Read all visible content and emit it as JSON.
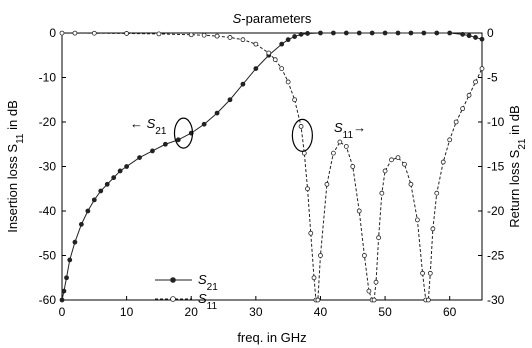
{
  "chart_data": {
    "type": "line",
    "title": "S-parameters",
    "xlabel": "freq. in GHz",
    "ylabel_left": "Insertion loss S11 in dB",
    "ylabel_right": "Return loss S21 in dB",
    "xlim": [
      0,
      65
    ],
    "ylim_left": [
      -60,
      0
    ],
    "ylim_right": [
      -30,
      0
    ],
    "x_ticks": [
      0,
      10,
      20,
      30,
      40,
      50,
      60
    ],
    "y_ticks_left": [
      0,
      -10,
      -20,
      -30,
      -40,
      -50,
      -60
    ],
    "y_ticks_right": [
      0,
      -5,
      -10,
      -15,
      -20,
      -25,
      -30
    ],
    "grid": false,
    "legend": {
      "placement": "bottom-left",
      "entries": [
        "S21",
        "S11"
      ]
    },
    "annotations": [
      {
        "text": "← S21",
        "target_series": "S21"
      },
      {
        "text": "S11→",
        "target_series": "S11"
      }
    ],
    "series": [
      {
        "name": "S21",
        "marker": "filled-circle",
        "line": "solid",
        "axis": "left",
        "x": [
          0,
          0.3,
          0.7,
          1.2,
          2,
          3,
          4,
          5,
          6,
          7,
          8,
          9,
          10,
          12,
          14,
          16,
          18,
          20,
          22,
          24,
          26,
          28,
          30,
          32,
          34,
          35,
          36,
          37,
          38,
          40,
          42,
          44,
          46,
          48,
          50,
          52,
          54,
          56,
          58,
          60,
          62,
          63,
          64,
          65
        ],
        "y": [
          -60,
          -58,
          -55,
          -51,
          -47,
          -43,
          -40,
          -37.5,
          -35.5,
          -34,
          -32.5,
          -31,
          -30,
          -28,
          -26.5,
          -25,
          -24,
          -22.5,
          -20.5,
          -18,
          -15,
          -11.5,
          -8,
          -5,
          -2.5,
          -1.5,
          -0.8,
          -0.3,
          -0.1,
          0,
          0,
          0,
          0,
          0,
          0,
          0,
          0,
          0,
          0,
          0,
          -0.3,
          -0.6,
          -1.0,
          -1.4
        ]
      },
      {
        "name": "S11",
        "marker": "open-circle",
        "line": "dashed",
        "axis": "left",
        "x": [
          0,
          2,
          5,
          10,
          15,
          20,
          22,
          24,
          26,
          28,
          30,
          32,
          33,
          34,
          35,
          36,
          37,
          37.5,
          38,
          38.5,
          39,
          39.3,
          39.6,
          40,
          41,
          42,
          43,
          44,
          45,
          46,
          46.8,
          47.5,
          48,
          48.3,
          48.6,
          49,
          49.5,
          50,
          51,
          52,
          53,
          54,
          55,
          55.8,
          56.3,
          56.7,
          57,
          57.4,
          58,
          59,
          60,
          61,
          62,
          63,
          64,
          65
        ],
        "y": [
          -0.02,
          -0.03,
          -0.05,
          -0.1,
          -0.2,
          -0.4,
          -0.5,
          -0.7,
          -1,
          -1.5,
          -2.5,
          -4.5,
          -6,
          -8,
          -11,
          -15,
          -21,
          -27,
          -35,
          -45,
          -55,
          -60,
          -60,
          -50,
          -34,
          -27,
          -24.5,
          -25.5,
          -30,
          -40,
          -50,
          -58,
          -60,
          -60,
          -56,
          -46,
          -36,
          -31,
          -28.5,
          -28,
          -29.5,
          -34,
          -42,
          -54,
          -60,
          -60,
          -54,
          -44,
          -36,
          -29,
          -24,
          -20,
          -17,
          -14,
          -11,
          -8
        ]
      }
    ]
  }
}
